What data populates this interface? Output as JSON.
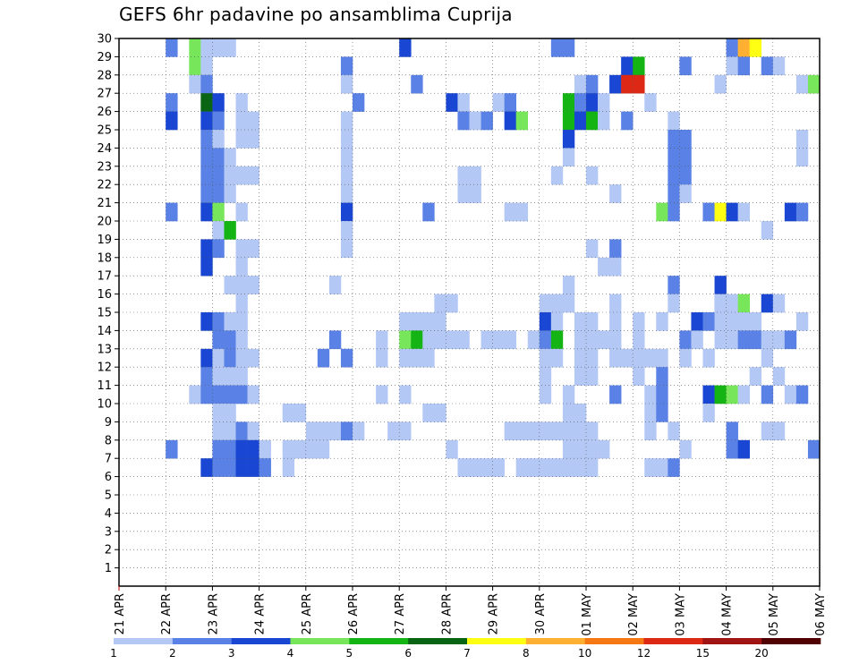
{
  "chart_data": {
    "type": "heatmap",
    "title": "GEFS 6hr padavine po ansamblima Cuprija",
    "xlabel": "",
    "ylabel": "",
    "x_tick_labels": [
      "21 APR",
      "22 APR",
      "23 APR",
      "24 APR",
      "25 APR",
      "26 APR",
      "27 APR",
      "28 APR",
      "29 APR",
      "30 APR",
      "01 MAY",
      "02 MAY",
      "03 MAY",
      "04 MAY",
      "05 MAY",
      "06 MAY"
    ],
    "x_range": [
      0,
      60
    ],
    "x_unit": "6-hour steps from 21 APR 00z",
    "y_tick_labels": [
      "1",
      "2",
      "3",
      "4",
      "5",
      "6",
      "7",
      "8",
      "9",
      "10",
      "11",
      "12",
      "13",
      "14",
      "15",
      "16",
      "17",
      "18",
      "19",
      "20",
      "21",
      "22",
      "23",
      "24",
      "25",
      "26",
      "27",
      "28",
      "29",
      "30"
    ],
    "y_range": [
      0,
      30
    ],
    "grid": true,
    "legend": {
      "placement": "bottom",
      "levels": [
        "1",
        "2",
        "3",
        "4",
        "5",
        "6",
        "7",
        "8",
        "10",
        "12",
        "15",
        "20"
      ],
      "colors": [
        "#b4c8f5",
        "#5a82e6",
        "#1946d2",
        "#78e65a",
        "#14b414",
        "#096414",
        "#ffff14",
        "#ffaf32",
        "#f57814",
        "#dc2814",
        "#a01414",
        "#500000"
      ]
    },
    "cells": [
      [
        20,
        27,
        6,
        1
      ],
      [
        22,
        27,
        6,
        2
      ],
      [
        23,
        27,
        6,
        1
      ],
      [
        17,
        29,
        4,
        3
      ],
      [
        17,
        28,
        4,
        4
      ],
      [
        18,
        28,
        4,
        1
      ],
      [
        18,
        27,
        4,
        1
      ],
      [
        17,
        27,
        3,
        1
      ],
      [
        27,
        27,
        3,
        1
      ],
      [
        28,
        27,
        3,
        1
      ],
      [
        28,
        26,
        3,
        2
      ],
      [
        17,
        26,
        2,
        1
      ],
      [
        17,
        25,
        2,
        1
      ],
      [
        17,
        24,
        2,
        1
      ],
      [
        16,
        24,
        2,
        1
      ],
      [
        16,
        23,
        2,
        1
      ],
      [
        21,
        23,
        2,
        1
      ],
      [
        21,
        24,
        2,
        1
      ],
      [
        22,
        24,
        2,
        1
      ],
      [
        20,
        24,
        2,
        2
      ],
      [
        20,
        23,
        2,
        1
      ],
      [
        22,
        23,
        2,
        1
      ],
      [
        21,
        22,
        2,
        1
      ],
      [
        22,
        22,
        2,
        1
      ],
      [
        18,
        21,
        2,
        1
      ],
      [
        21,
        13,
        1,
        1
      ],
      [
        21,
        14,
        1,
        1
      ],
      [
        28,
        22,
        1,
        1
      ],
      [
        25,
        18,
        1,
        1
      ],
      [
        23,
        16,
        1,
        1
      ],
      [
        23,
        15,
        1,
        1
      ],
      [
        22,
        15,
        1,
        1
      ],
      [
        22,
        14,
        1,
        1
      ],
      [
        21,
        12,
        1,
        1
      ],
      [
        26,
        11,
        1,
        1
      ],
      [
        25,
        13,
        1,
        1
      ],
      [
        26,
        10,
        1,
        1
      ]
    ]
  },
  "main_cells": [
    [
      4,
      29,
      2
    ],
    [
      6,
      29,
      4
    ],
    [
      7,
      29,
      1
    ],
    [
      8,
      29,
      1
    ],
    [
      9,
      29,
      1
    ],
    [
      24,
      29,
      3
    ],
    [
      37,
      29,
      2
    ],
    [
      38,
      29,
      2
    ],
    [
      52,
      29,
      2
    ],
    [
      53,
      29,
      8
    ],
    [
      54,
      29,
      7
    ],
    [
      6,
      28,
      4
    ],
    [
      7,
      28,
      1
    ],
    [
      19,
      28,
      2
    ],
    [
      43,
      28,
      3
    ],
    [
      44,
      28,
      5
    ],
    [
      48,
      28,
      2
    ],
    [
      52,
      28,
      1
    ],
    [
      53,
      28,
      2
    ],
    [
      55,
      28,
      2
    ],
    [
      56,
      28,
      1
    ],
    [
      6,
      27,
      1
    ],
    [
      7,
      27,
      2
    ],
    [
      19,
      27,
      1
    ],
    [
      25,
      27,
      2
    ],
    [
      39,
      27,
      1
    ],
    [
      40,
      27,
      2
    ],
    [
      42,
      27,
      3
    ],
    [
      41,
      27,
      13
    ],
    [
      43,
      27,
      10
    ],
    [
      44,
      27,
      10
    ],
    [
      51,
      27,
      1
    ],
    [
      58,
      27,
      1
    ],
    [
      59,
      27,
      4
    ],
    [
      7,
      26,
      6
    ],
    [
      8,
      26,
      3
    ],
    [
      4,
      26,
      2
    ],
    [
      10,
      26,
      1
    ],
    [
      20,
      26,
      2
    ],
    [
      28,
      26,
      3
    ],
    [
      29,
      26,
      1
    ],
    [
      32,
      26,
      1
    ],
    [
      33,
      26,
      2
    ],
    [
      38,
      26,
      5
    ],
    [
      39,
      26,
      2
    ],
    [
      40,
      26,
      3
    ],
    [
      41,
      26,
      1
    ],
    [
      45,
      26,
      1
    ],
    [
      4,
      25,
      3
    ],
    [
      7,
      25,
      3
    ],
    [
      8,
      25,
      2
    ],
    [
      10,
      25,
      1
    ],
    [
      11,
      25,
      1
    ],
    [
      19,
      25,
      1
    ],
    [
      29,
      25,
      2
    ],
    [
      30,
      25,
      1
    ],
    [
      31,
      25,
      2
    ],
    [
      33,
      25,
      3
    ],
    [
      34,
      25,
      4
    ],
    [
      38,
      25,
      5
    ],
    [
      39,
      25,
      3
    ],
    [
      40,
      25,
      5
    ],
    [
      41,
      25,
      1
    ],
    [
      43,
      25,
      2
    ],
    [
      47,
      25,
      1
    ],
    [
      7,
      24,
      2
    ],
    [
      8,
      24,
      1
    ],
    [
      10,
      24,
      1
    ],
    [
      11,
      24,
      1
    ],
    [
      19,
      24,
      1
    ],
    [
      38,
      24,
      3
    ],
    [
      47,
      24,
      2
    ],
    [
      48,
      24,
      2
    ],
    [
      58,
      24,
      1
    ],
    [
      7,
      23,
      2
    ],
    [
      8,
      23,
      2
    ],
    [
      9,
      23,
      1
    ],
    [
      19,
      23,
      1
    ],
    [
      38,
      23,
      1
    ],
    [
      47,
      23,
      2
    ],
    [
      48,
      23,
      2
    ],
    [
      58,
      23,
      1
    ],
    [
      7,
      22,
      2
    ],
    [
      8,
      22,
      2
    ],
    [
      9,
      22,
      1
    ],
    [
      10,
      22,
      1
    ],
    [
      11,
      22,
      1
    ],
    [
      19,
      22,
      1
    ],
    [
      29,
      22,
      1
    ],
    [
      30,
      22,
      1
    ],
    [
      37,
      22,
      1
    ],
    [
      40,
      22,
      1
    ],
    [
      47,
      22,
      2
    ],
    [
      48,
      22,
      2
    ],
    [
      7,
      21,
      2
    ],
    [
      8,
      21,
      2
    ],
    [
      9,
      21,
      1
    ],
    [
      19,
      21,
      1
    ],
    [
      29,
      21,
      1
    ],
    [
      30,
      21,
      1
    ],
    [
      42,
      21,
      1
    ],
    [
      47,
      21,
      2
    ],
    [
      48,
      21,
      1
    ],
    [
      4,
      20,
      2
    ],
    [
      7,
      20,
      3
    ],
    [
      8,
      20,
      4
    ],
    [
      10,
      20,
      1
    ],
    [
      19,
      20,
      3
    ],
    [
      26,
      20,
      2
    ],
    [
      33,
      20,
      1
    ],
    [
      34,
      20,
      1
    ],
    [
      46,
      20,
      4
    ],
    [
      47,
      20,
      2
    ],
    [
      50,
      20,
      2
    ],
    [
      51,
      20,
      7
    ],
    [
      52,
      20,
      3
    ],
    [
      53,
      20,
      1
    ],
    [
      57,
      20,
      3
    ],
    [
      58,
      20,
      2
    ],
    [
      8,
      19,
      1
    ],
    [
      9,
      19,
      5
    ],
    [
      19,
      19,
      1
    ],
    [
      55,
      19,
      1
    ],
    [
      7,
      18,
      3
    ],
    [
      8,
      18,
      2
    ],
    [
      10,
      18,
      1
    ],
    [
      11,
      18,
      1
    ],
    [
      19,
      18,
      1
    ],
    [
      40,
      18,
      1
    ],
    [
      42,
      18,
      2
    ],
    [
      7,
      17,
      3
    ],
    [
      10,
      17,
      1
    ],
    [
      41,
      17,
      1
    ],
    [
      42,
      17,
      1
    ],
    [
      9,
      16,
      1
    ],
    [
      10,
      16,
      1
    ],
    [
      11,
      16,
      1
    ],
    [
      18,
      16,
      1
    ],
    [
      38,
      16,
      1
    ],
    [
      47,
      16,
      2
    ],
    [
      51,
      16,
      3
    ],
    [
      51,
      15,
      3
    ],
    [
      10,
      15,
      1
    ],
    [
      27,
      15,
      1
    ],
    [
      28,
      15,
      1
    ],
    [
      36,
      15,
      1
    ],
    [
      37,
      15,
      1
    ],
    [
      38,
      15,
      1
    ],
    [
      42,
      15,
      1
    ],
    [
      47,
      15,
      1
    ],
    [
      51,
      15,
      1
    ],
    [
      52,
      15,
      1
    ],
    [
      53,
      15,
      4
    ],
    [
      55,
      15,
      3
    ],
    [
      56,
      15,
      1
    ],
    [
      7,
      14,
      3
    ],
    [
      8,
      14,
      2
    ],
    [
      9,
      14,
      1
    ],
    [
      10,
      14,
      1
    ],
    [
      24,
      14,
      1
    ],
    [
      25,
      14,
      1
    ],
    [
      26,
      14,
      1
    ],
    [
      27,
      14,
      1
    ],
    [
      36,
      14,
      3
    ],
    [
      37,
      14,
      1
    ],
    [
      39,
      14,
      1
    ],
    [
      40,
      14,
      1
    ],
    [
      42,
      14,
      1
    ],
    [
      44,
      14,
      1
    ],
    [
      46,
      14,
      1
    ],
    [
      49,
      14,
      3
    ],
    [
      50,
      14,
      2
    ],
    [
      51,
      14,
      1
    ],
    [
      52,
      14,
      1
    ],
    [
      53,
      14,
      1
    ],
    [
      54,
      14,
      1
    ],
    [
      58,
      14,
      1
    ],
    [
      8,
      13,
      2
    ],
    [
      9,
      13,
      2
    ],
    [
      10,
      13,
      1
    ],
    [
      18,
      13,
      2
    ],
    [
      22,
      13,
      1
    ],
    [
      24,
      13,
      4
    ],
    [
      25,
      13,
      5
    ],
    [
      26,
      13,
      1
    ],
    [
      27,
      13,
      1
    ],
    [
      28,
      13,
      1
    ],
    [
      29,
      13,
      1
    ],
    [
      31,
      13,
      1
    ],
    [
      32,
      13,
      1
    ],
    [
      33,
      13,
      1
    ],
    [
      35,
      13,
      1
    ],
    [
      36,
      13,
      2
    ],
    [
      37,
      13,
      5
    ],
    [
      39,
      13,
      1
    ],
    [
      40,
      13,
      1
    ],
    [
      41,
      13,
      1
    ],
    [
      42,
      13,
      1
    ],
    [
      44,
      13,
      1
    ],
    [
      48,
      13,
      2
    ],
    [
      49,
      13,
      1
    ],
    [
      51,
      13,
      1
    ],
    [
      52,
      13,
      1
    ],
    [
      53,
      13,
      2
    ],
    [
      54,
      13,
      2
    ],
    [
      55,
      13,
      1
    ],
    [
      56,
      13,
      1
    ],
    [
      57,
      13,
      2
    ],
    [
      7,
      12,
      3
    ],
    [
      8,
      12,
      1
    ],
    [
      9,
      12,
      2
    ],
    [
      10,
      12,
      1
    ],
    [
      11,
      12,
      1
    ],
    [
      17,
      12,
      2
    ],
    [
      19,
      12,
      2
    ],
    [
      22,
      12,
      1
    ],
    [
      24,
      12,
      1
    ],
    [
      25,
      12,
      1
    ],
    [
      26,
      12,
      1
    ],
    [
      36,
      12,
      1
    ],
    [
      37,
      12,
      1
    ],
    [
      39,
      12,
      1
    ],
    [
      40,
      12,
      1
    ],
    [
      42,
      12,
      1
    ],
    [
      43,
      12,
      1
    ],
    [
      44,
      12,
      1
    ],
    [
      45,
      12,
      1
    ],
    [
      46,
      12,
      1
    ],
    [
      48,
      12,
      1
    ],
    [
      50,
      12,
      1
    ],
    [
      55,
      12,
      1
    ],
    [
      7,
      11,
      2
    ],
    [
      8,
      11,
      1
    ],
    [
      9,
      11,
      1
    ],
    [
      10,
      11,
      1
    ],
    [
      36,
      11,
      1
    ],
    [
      39,
      11,
      1
    ],
    [
      40,
      11,
      1
    ],
    [
      44,
      11,
      1
    ],
    [
      46,
      11,
      2
    ],
    [
      54,
      11,
      1
    ],
    [
      56,
      11,
      1
    ],
    [
      6,
      10,
      1
    ],
    [
      7,
      10,
      2
    ],
    [
      8,
      10,
      2
    ],
    [
      9,
      10,
      2
    ],
    [
      10,
      10,
      2
    ],
    [
      11,
      10,
      1
    ],
    [
      22,
      10,
      1
    ],
    [
      24,
      10,
      1
    ],
    [
      36,
      10,
      1
    ],
    [
      38,
      10,
      1
    ],
    [
      42,
      10,
      2
    ],
    [
      45,
      10,
      1
    ],
    [
      46,
      10,
      2
    ],
    [
      50,
      10,
      3
    ],
    [
      51,
      10,
      5
    ],
    [
      52,
      10,
      4
    ],
    [
      53,
      10,
      1
    ],
    [
      55,
      10,
      2
    ],
    [
      57,
      10,
      1
    ],
    [
      58,
      10,
      2
    ],
    [
      8,
      9,
      1
    ],
    [
      9,
      9,
      1
    ],
    [
      14,
      9,
      1
    ],
    [
      15,
      9,
      1
    ],
    [
      26,
      9,
      1
    ],
    [
      27,
      9,
      1
    ],
    [
      38,
      9,
      1
    ],
    [
      39,
      9,
      1
    ],
    [
      45,
      9,
      1
    ],
    [
      46,
      9,
      2
    ],
    [
      50,
      9,
      1
    ],
    [
      8,
      8,
      1
    ],
    [
      9,
      8,
      1
    ],
    [
      10,
      8,
      2
    ],
    [
      11,
      8,
      1
    ],
    [
      16,
      8,
      1
    ],
    [
      17,
      8,
      1
    ],
    [
      18,
      8,
      1
    ],
    [
      19,
      8,
      2
    ],
    [
      20,
      8,
      1
    ],
    [
      23,
      8,
      1
    ],
    [
      24,
      8,
      1
    ],
    [
      33,
      8,
      1
    ],
    [
      34,
      8,
      1
    ],
    [
      35,
      8,
      1
    ],
    [
      36,
      8,
      1
    ],
    [
      37,
      8,
      1
    ],
    [
      38,
      8,
      1
    ],
    [
      39,
      8,
      1
    ],
    [
      40,
      8,
      1
    ],
    [
      45,
      8,
      1
    ],
    [
      47,
      8,
      1
    ],
    [
      52,
      8,
      2
    ],
    [
      55,
      8,
      1
    ],
    [
      56,
      8,
      1
    ],
    [
      4,
      7,
      2
    ],
    [
      8,
      7,
      2
    ],
    [
      9,
      7,
      2
    ],
    [
      10,
      7,
      3
    ],
    [
      11,
      7,
      3
    ],
    [
      12,
      7,
      1
    ],
    [
      14,
      7,
      1
    ],
    [
      15,
      7,
      1
    ],
    [
      16,
      7,
      1
    ],
    [
      17,
      7,
      1
    ],
    [
      28,
      7,
      1
    ],
    [
      38,
      7,
      1
    ],
    [
      39,
      7,
      1
    ],
    [
      40,
      7,
      1
    ],
    [
      41,
      7,
      1
    ],
    [
      48,
      7,
      1
    ],
    [
      52,
      7,
      2
    ],
    [
      53,
      7,
      3
    ],
    [
      59,
      7,
      2
    ],
    [
      7,
      6,
      3
    ],
    [
      8,
      6,
      2
    ],
    [
      9,
      6,
      2
    ],
    [
      10,
      6,
      3
    ],
    [
      11,
      6,
      3
    ],
    [
      12,
      6,
      2
    ],
    [
      14,
      6,
      1
    ],
    [
      29,
      6,
      1
    ],
    [
      30,
      6,
      1
    ],
    [
      31,
      6,
      1
    ],
    [
      32,
      6,
      1
    ],
    [
      34,
      6,
      1
    ],
    [
      35,
      6,
      1
    ],
    [
      36,
      6,
      1
    ],
    [
      37,
      6,
      1
    ],
    [
      38,
      6,
      1
    ],
    [
      39,
      6,
      1
    ],
    [
      40,
      6,
      1
    ],
    [
      45,
      6,
      1
    ],
    [
      46,
      6,
      1
    ],
    [
      47,
      6,
      2
    ]
  ]
}
